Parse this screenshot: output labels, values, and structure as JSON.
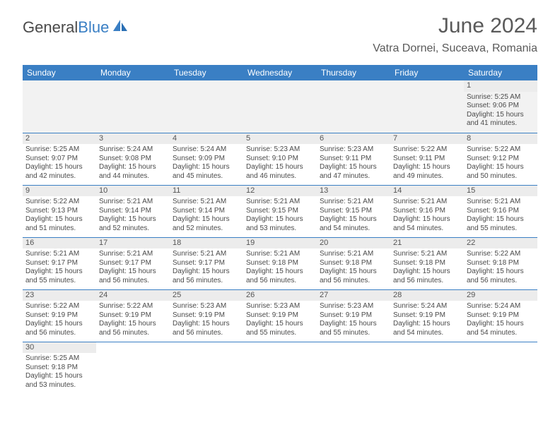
{
  "brand": {
    "text1": "General",
    "text2": "Blue"
  },
  "title": "June 2024",
  "location": "Vatra Dornei, Suceava, Romania",
  "colors": {
    "header_bg": "#3a7fc4",
    "header_text": "#ffffff",
    "daynum_bg": "#ececec",
    "empty_bg": "#f2f2f2",
    "border": "#3a7fc4",
    "text": "#4a4a4a"
  },
  "typography": {
    "title_fontsize": 30,
    "location_fontsize": 16,
    "weekday_fontsize": 12,
    "cell_fontsize": 10
  },
  "weekdays": [
    "Sunday",
    "Monday",
    "Tuesday",
    "Wednesday",
    "Thursday",
    "Friday",
    "Saturday"
  ],
  "weeks": [
    [
      null,
      null,
      null,
      null,
      null,
      null,
      {
        "day": "1",
        "sunrise": "Sunrise: 5:25 AM",
        "sunset": "Sunset: 9:06 PM",
        "daylight": "Daylight: 15 hours and 41 minutes."
      }
    ],
    [
      {
        "day": "2",
        "sunrise": "Sunrise: 5:25 AM",
        "sunset": "Sunset: 9:07 PM",
        "daylight": "Daylight: 15 hours and 42 minutes."
      },
      {
        "day": "3",
        "sunrise": "Sunrise: 5:24 AM",
        "sunset": "Sunset: 9:08 PM",
        "daylight": "Daylight: 15 hours and 44 minutes."
      },
      {
        "day": "4",
        "sunrise": "Sunrise: 5:24 AM",
        "sunset": "Sunset: 9:09 PM",
        "daylight": "Daylight: 15 hours and 45 minutes."
      },
      {
        "day": "5",
        "sunrise": "Sunrise: 5:23 AM",
        "sunset": "Sunset: 9:10 PM",
        "daylight": "Daylight: 15 hours and 46 minutes."
      },
      {
        "day": "6",
        "sunrise": "Sunrise: 5:23 AM",
        "sunset": "Sunset: 9:11 PM",
        "daylight": "Daylight: 15 hours and 47 minutes."
      },
      {
        "day": "7",
        "sunrise": "Sunrise: 5:22 AM",
        "sunset": "Sunset: 9:11 PM",
        "daylight": "Daylight: 15 hours and 49 minutes."
      },
      {
        "day": "8",
        "sunrise": "Sunrise: 5:22 AM",
        "sunset": "Sunset: 9:12 PM",
        "daylight": "Daylight: 15 hours and 50 minutes."
      }
    ],
    [
      {
        "day": "9",
        "sunrise": "Sunrise: 5:22 AM",
        "sunset": "Sunset: 9:13 PM",
        "daylight": "Daylight: 15 hours and 51 minutes."
      },
      {
        "day": "10",
        "sunrise": "Sunrise: 5:21 AM",
        "sunset": "Sunset: 9:14 PM",
        "daylight": "Daylight: 15 hours and 52 minutes."
      },
      {
        "day": "11",
        "sunrise": "Sunrise: 5:21 AM",
        "sunset": "Sunset: 9:14 PM",
        "daylight": "Daylight: 15 hours and 52 minutes."
      },
      {
        "day": "12",
        "sunrise": "Sunrise: 5:21 AM",
        "sunset": "Sunset: 9:15 PM",
        "daylight": "Daylight: 15 hours and 53 minutes."
      },
      {
        "day": "13",
        "sunrise": "Sunrise: 5:21 AM",
        "sunset": "Sunset: 9:15 PM",
        "daylight": "Daylight: 15 hours and 54 minutes."
      },
      {
        "day": "14",
        "sunrise": "Sunrise: 5:21 AM",
        "sunset": "Sunset: 9:16 PM",
        "daylight": "Daylight: 15 hours and 54 minutes."
      },
      {
        "day": "15",
        "sunrise": "Sunrise: 5:21 AM",
        "sunset": "Sunset: 9:16 PM",
        "daylight": "Daylight: 15 hours and 55 minutes."
      }
    ],
    [
      {
        "day": "16",
        "sunrise": "Sunrise: 5:21 AM",
        "sunset": "Sunset: 9:17 PM",
        "daylight": "Daylight: 15 hours and 55 minutes."
      },
      {
        "day": "17",
        "sunrise": "Sunrise: 5:21 AM",
        "sunset": "Sunset: 9:17 PM",
        "daylight": "Daylight: 15 hours and 56 minutes."
      },
      {
        "day": "18",
        "sunrise": "Sunrise: 5:21 AM",
        "sunset": "Sunset: 9:17 PM",
        "daylight": "Daylight: 15 hours and 56 minutes."
      },
      {
        "day": "19",
        "sunrise": "Sunrise: 5:21 AM",
        "sunset": "Sunset: 9:18 PM",
        "daylight": "Daylight: 15 hours and 56 minutes."
      },
      {
        "day": "20",
        "sunrise": "Sunrise: 5:21 AM",
        "sunset": "Sunset: 9:18 PM",
        "daylight": "Daylight: 15 hours and 56 minutes."
      },
      {
        "day": "21",
        "sunrise": "Sunrise: 5:21 AM",
        "sunset": "Sunset: 9:18 PM",
        "daylight": "Daylight: 15 hours and 56 minutes."
      },
      {
        "day": "22",
        "sunrise": "Sunrise: 5:22 AM",
        "sunset": "Sunset: 9:18 PM",
        "daylight": "Daylight: 15 hours and 56 minutes."
      }
    ],
    [
      {
        "day": "23",
        "sunrise": "Sunrise: 5:22 AM",
        "sunset": "Sunset: 9:19 PM",
        "daylight": "Daylight: 15 hours and 56 minutes."
      },
      {
        "day": "24",
        "sunrise": "Sunrise: 5:22 AM",
        "sunset": "Sunset: 9:19 PM",
        "daylight": "Daylight: 15 hours and 56 minutes."
      },
      {
        "day": "25",
        "sunrise": "Sunrise: 5:23 AM",
        "sunset": "Sunset: 9:19 PM",
        "daylight": "Daylight: 15 hours and 56 minutes."
      },
      {
        "day": "26",
        "sunrise": "Sunrise: 5:23 AM",
        "sunset": "Sunset: 9:19 PM",
        "daylight": "Daylight: 15 hours and 55 minutes."
      },
      {
        "day": "27",
        "sunrise": "Sunrise: 5:23 AM",
        "sunset": "Sunset: 9:19 PM",
        "daylight": "Daylight: 15 hours and 55 minutes."
      },
      {
        "day": "28",
        "sunrise": "Sunrise: 5:24 AM",
        "sunset": "Sunset: 9:19 PM",
        "daylight": "Daylight: 15 hours and 54 minutes."
      },
      {
        "day": "29",
        "sunrise": "Sunrise: 5:24 AM",
        "sunset": "Sunset: 9:19 PM",
        "daylight": "Daylight: 15 hours and 54 minutes."
      }
    ],
    [
      {
        "day": "30",
        "sunrise": "Sunrise: 5:25 AM",
        "sunset": "Sunset: 9:18 PM",
        "daylight": "Daylight: 15 hours and 53 minutes."
      },
      null,
      null,
      null,
      null,
      null,
      null
    ]
  ]
}
